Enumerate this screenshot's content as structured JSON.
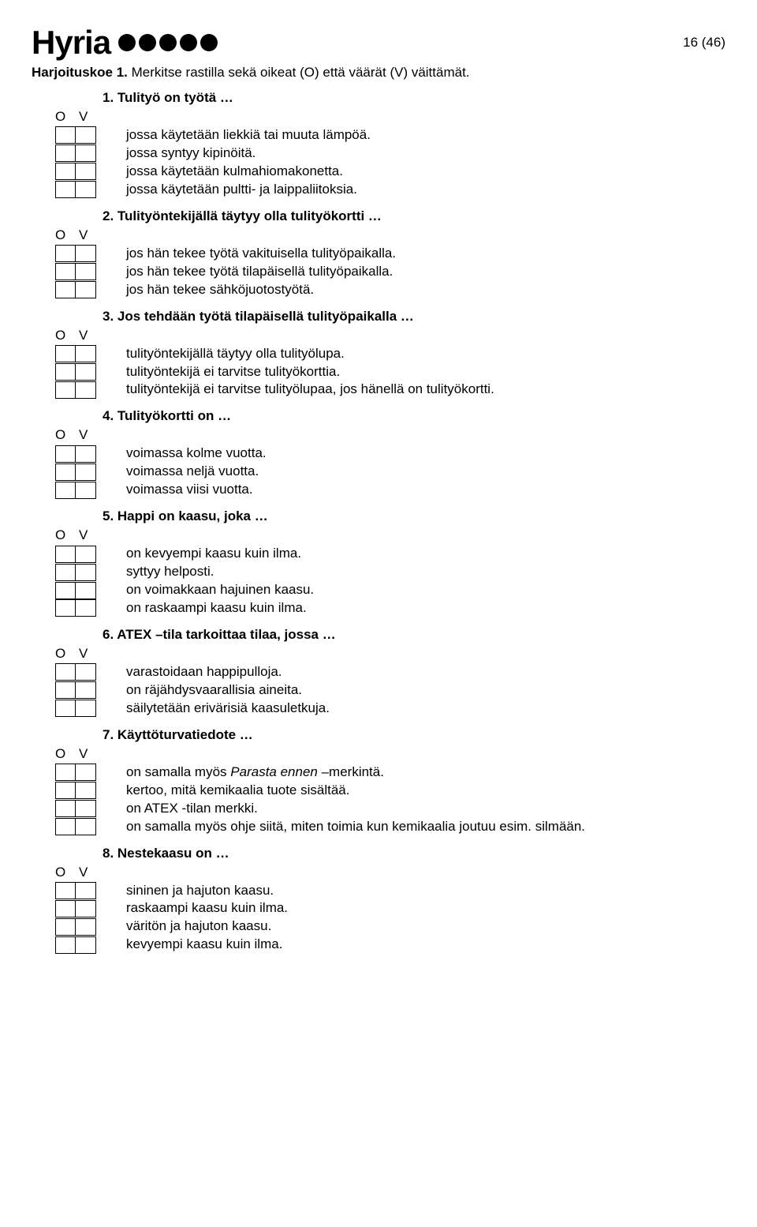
{
  "brand": "Hyria",
  "page_number": "16 (46)",
  "intro_prefix": "Harjoituskoe 1.",
  "intro_rest": " Merkitse rastilla sekä oikeat (O) että väärät (V) väittämät.",
  "ov": {
    "o": "O",
    "v": "V"
  },
  "questions": [
    {
      "title": "1.  Tulityö on työtä …",
      "statements": [
        {
          "text": "jossa käytetään liekkiä tai muuta lämpöä."
        },
        {
          "text": "jossa syntyy kipinöitä."
        },
        {
          "text": "jossa käytetään kulmahiomakonetta."
        },
        {
          "text": "jossa käytetään pultti- ja laippaliitoksia."
        }
      ]
    },
    {
      "title": "2.  Tulityöntekijällä täytyy olla tulityökortti …",
      "statements": [
        {
          "text": "jos hän tekee työtä vakituisella tulityöpaikalla."
        },
        {
          "text": "jos hän tekee työtä tilapäisellä tulityöpaikalla."
        },
        {
          "text": "jos hän tekee sähköjuotostyötä."
        }
      ]
    },
    {
      "title": "3.  Jos tehdään työtä tilapäisellä tulityöpaikalla …",
      "statements": [
        {
          "text": "tulityöntekijällä täytyy olla tulityölupa."
        },
        {
          "text": "tulityöntekijä ei tarvitse tulityökorttia."
        },
        {
          "text": "tulityöntekijä ei tarvitse tulityölupaa, jos hänellä on tulityökortti."
        }
      ]
    },
    {
      "title": "4.  Tulityökortti on …",
      "statements": [
        {
          "text": "voimassa kolme vuotta."
        },
        {
          "text": "voimassa neljä vuotta."
        },
        {
          "text": "voimassa viisi vuotta."
        }
      ]
    },
    {
      "title": "5.  Happi on kaasu, joka …",
      "statements": [
        {
          "text": "on kevyempi kaasu kuin ilma."
        },
        {
          "text": "syttyy helposti."
        },
        {
          "text": "on voimakkaan hajuinen kaasu."
        },
        {
          "text": "on raskaampi kaasu kuin ilma."
        }
      ]
    },
    {
      "title": "6.  ATEX –tila tarkoittaa tilaa, jossa …",
      "statements": [
        {
          "text": "varastoidaan happipulloja."
        },
        {
          "text": "on räjähdysvaarallisia aineita."
        },
        {
          "text": "säilytetään erivärisiä kaasuletkuja."
        }
      ]
    },
    {
      "title": "7.  Käyttöturvatiedote …",
      "statements": [
        {
          "text_pre": "on samalla myös ",
          "italic": "Parasta ennen",
          "text_post": " –merkintä."
        },
        {
          "text": "kertoo, mitä kemikaalia tuote sisältää."
        },
        {
          "text": "on ATEX -tilan merkki."
        },
        {
          "text": "on samalla myös ohje siitä, miten toimia kun kemikaalia joutuu esim. silmään."
        }
      ]
    },
    {
      "title": "8.  Nestekaasu on …",
      "statements": [
        {
          "text": "sininen ja hajuton kaasu."
        },
        {
          "text": "raskaampi kaasu kuin ilma."
        },
        {
          "text": "väritön ja hajuton kaasu."
        },
        {
          "text": "kevyempi kaasu kuin ilma."
        }
      ]
    }
  ]
}
